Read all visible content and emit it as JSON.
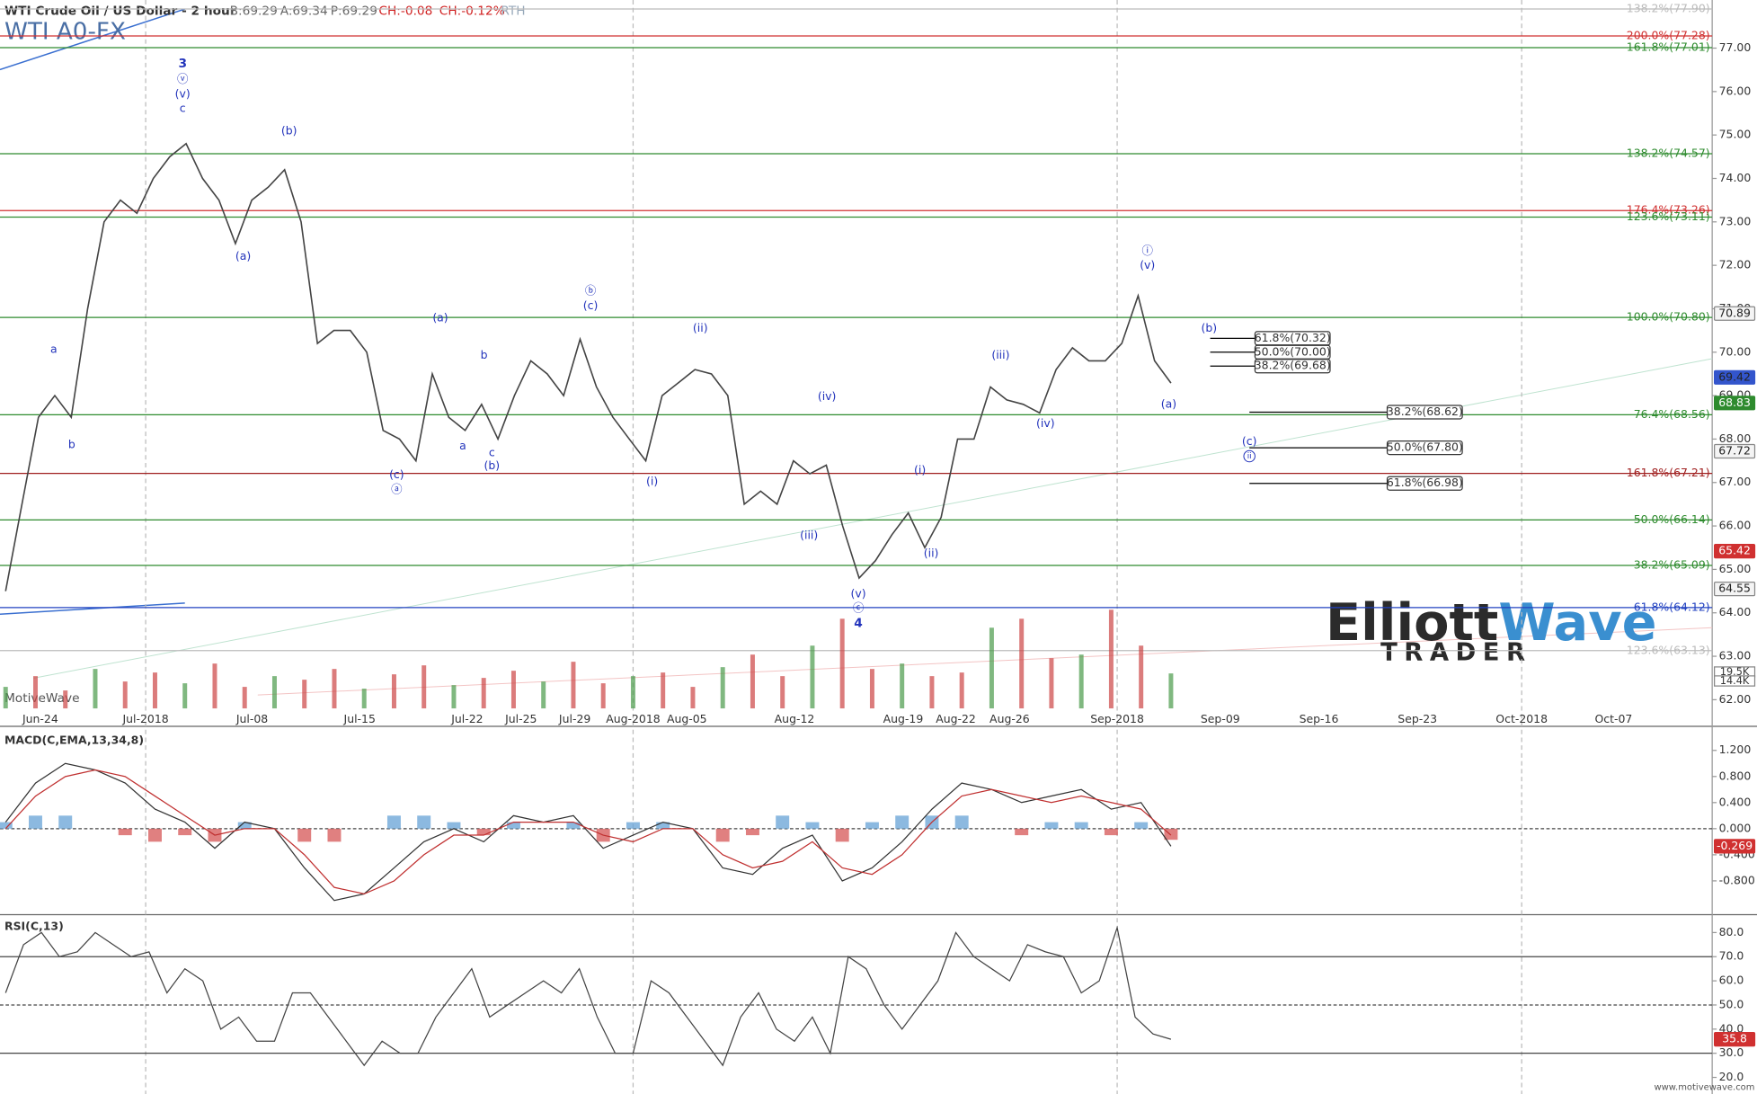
{
  "header": {
    "instrument": "WTI Crude Oil / US Dollar - 2 hour",
    "bid": "B:69.29",
    "ask": "A:69.34",
    "price": "P:69.29",
    "change": "CH:-0.08",
    "change_pct": "CH:-0.12%",
    "session": "RTH",
    "symbol": "WTI A0-FX"
  },
  "logo": {
    "part1": "Elliott",
    "part2": "Wave",
    "part3": "TRADER"
  },
  "watermark": "MotiveWave",
  "footer": "www.motivewave.com",
  "annotations": [
    "3",
    "ⓥ",
    "(v)",
    "c",
    "(b)",
    "(a)",
    "a",
    "b",
    "(a)",
    "b",
    "a",
    "c",
    "(b)",
    "(c)",
    "ⓐ",
    "ⓑ",
    "(c)",
    "(ii)",
    "(i)",
    "(iv)",
    "(iii)",
    "(v)",
    "ⓒ",
    "4",
    "(i)",
    "(ii)",
    "(iii)",
    "(iv)",
    "ⓘ",
    "(v)",
    "(a)",
    "(b)",
    "(c)",
    "ii"
  ],
  "chart_data": [
    {
      "type": "line",
      "color": "#444444",
      "date_labels": [
        "Jun-24",
        "Jul-2018",
        "Jul-08",
        "Jul-15",
        "Jul-22",
        "Jul-25",
        "Jul-29",
        "Aug-2018",
        "Aug-05",
        "Aug-12",
        "Aug-19",
        "Aug-22",
        "Aug-26",
        "Sep-2018",
        "Sep-09",
        "Sep-16",
        "Sep-23",
        "Oct-2018",
        "Oct-07"
      ],
      "values": [
        64.5,
        66.5,
        68.5,
        69,
        68.5,
        71,
        73,
        73.5,
        73.2,
        74,
        74.5,
        74.8,
        74,
        73.5,
        72.5,
        73.5,
        73.8,
        74.2,
        73,
        70.2,
        70.5,
        70.5,
        70,
        68.2,
        68,
        67.5,
        69.5,
        68.5,
        68.2,
        68.8,
        68,
        69,
        69.8,
        69.5,
        69,
        70.3,
        69.2,
        68.5,
        68,
        67.5,
        69,
        69.3,
        69.6,
        69.5,
        69,
        66.5,
        66.8,
        66.5,
        67.5,
        67.2,
        67.4,
        66,
        64.8,
        65.2,
        65.8,
        66.3,
        65.5,
        66.2,
        68,
        68,
        69.2,
        68.9,
        68.8,
        68.6,
        69.6,
        70.1,
        69.8,
        69.8,
        70.2,
        71.3,
        69.8,
        69.29
      ],
      "ylim": [
        61.8,
        77.9
      ],
      "yticks": [
        {
          "value": 77,
          "label": "77.00"
        },
        {
          "value": 76,
          "label": "76.00"
        },
        {
          "value": 75,
          "label": "75.00"
        },
        {
          "value": 74,
          "label": "74.00"
        },
        {
          "value": 73,
          "label": "73.00"
        },
        {
          "value": 72,
          "label": "72.00"
        },
        {
          "value": 71,
          "label": "71.00"
        },
        {
          "value": 70,
          "label": "70.00"
        },
        {
          "value": 69,
          "label": "69.00"
        },
        {
          "value": 68,
          "label": "68.00"
        },
        {
          "value": 67,
          "label": "67.00"
        },
        {
          "value": 66,
          "label": "66.00"
        },
        {
          "value": 65,
          "label": "65.00"
        },
        {
          "value": 64,
          "label": "64.00"
        },
        {
          "value": 63,
          "label": "63.00"
        },
        {
          "value": 62,
          "label": "62.00"
        }
      ],
      "fib_levels": [
        {
          "label": "138.2%(77.90)",
          "value": 77.9,
          "color": "#bbbbbb"
        },
        {
          "label": "200.0%(77.28)",
          "value": 77.28,
          "color": "#d03030"
        },
        {
          "label": "161.8%(77.01)",
          "value": 77.01,
          "color": "#2e8b2e"
        },
        {
          "label": "138.2%(74.57)",
          "value": 74.57,
          "color": "#2e8b2e"
        },
        {
          "label": "176.4%(73.26)",
          "value": 73.26,
          "color": "#d03030"
        },
        {
          "label": "123.6%(73.11)",
          "value": 73.11,
          "color": "#2e8b2e"
        },
        {
          "label": "100.0%(70.80)",
          "value": 70.8,
          "color": "#2e8b2e"
        },
        {
          "label": "76.4%(68.56)",
          "value": 68.56,
          "color": "#2e8b2e"
        },
        {
          "label": "161.8%(67.21)",
          "value": 67.21,
          "color": "#a02020"
        },
        {
          "label": "50.0%(66.14)",
          "value": 66.14,
          "color": "#2e8b2e"
        },
        {
          "label": "38.2%(65.09)",
          "value": 65.09,
          "color": "#2e8b2e"
        },
        {
          "label": "61.8%(64.12)",
          "value": 64.12,
          "color": "#2040c0"
        },
        {
          "label": "123.6%(63.13)",
          "value": 63.13,
          "color": "#bbbbbb"
        }
      ],
      "boxed_levels": [
        {
          "label": "61.8%(70.32)",
          "value": 70.32
        },
        {
          "label": "50.0%(70.00)",
          "value": 70
        },
        {
          "label": "38.2%(69.68)",
          "value": 69.68
        },
        {
          "label": "38.2%(68.62)",
          "value": 68.62
        },
        {
          "label": "50.0%(67.80)",
          "value": 67.8
        },
        {
          "label": "61.8%(66.98)",
          "value": 66.98
        }
      ],
      "price_badges": [
        {
          "label": "70.89",
          "value": 70.89,
          "color": "#888888"
        },
        {
          "label": "69.42",
          "value": 69.42,
          "color": "#3355cc"
        },
        {
          "label": "68.83",
          "value": 68.83,
          "color": "#2e8b2e"
        },
        {
          "label": "67.72",
          "value": 67.72,
          "color": "#888888"
        },
        {
          "label": "65.42",
          "value": 65.42,
          "color": "#d03030"
        },
        {
          "label": "64.55",
          "value": 64.55,
          "color": "#888888"
        }
      ],
      "volume": {
        "values": [
          12,
          18,
          10,
          22,
          15,
          20,
          14,
          25,
          12,
          18,
          16,
          22,
          11,
          19,
          24,
          13,
          17,
          21,
          15,
          26,
          14,
          18,
          20,
          12,
          23,
          30,
          18,
          35,
          50,
          22,
          25,
          18,
          20,
          45,
          50,
          28,
          30,
          55,
          35,
          19.5
        ],
        "ylim": [
          0,
          60
        ],
        "color": "#cc4444",
        "badges": [
          "19.5K",
          "14.4K"
        ]
      }
    },
    {
      "type": "line",
      "title": "MACD(C,EMA,13,34,8)",
      "series": [
        {
          "color": "#333333",
          "values": [
            0.1,
            0.7,
            1.0,
            0.9,
            0.7,
            0.3,
            0.1,
            -0.3,
            0.1,
            0.0,
            -0.6,
            -1.1,
            -1.0,
            -0.6,
            -0.2,
            0.0,
            -0.2,
            0.2,
            0.1,
            0.2,
            -0.3,
            -0.1,
            0.1,
            0.0,
            -0.6,
            -0.7,
            -0.3,
            -0.1,
            -0.8,
            -0.6,
            -0.2,
            0.3,
            0.7,
            0.6,
            0.4,
            0.5,
            0.6,
            0.3,
            0.4,
            -0.269
          ]
        },
        {
          "color": "#c03030",
          "values": [
            0.0,
            0.5,
            0.8,
            0.9,
            0.8,
            0.5,
            0.2,
            -0.1,
            0.0,
            0.0,
            -0.4,
            -0.9,
            -1.0,
            -0.8,
            -0.4,
            -0.1,
            -0.1,
            0.1,
            0.1,
            0.1,
            -0.1,
            -0.2,
            0.0,
            0.0,
            -0.4,
            -0.6,
            -0.5,
            -0.2,
            -0.6,
            -0.7,
            -0.4,
            0.1,
            0.5,
            0.6,
            0.5,
            0.4,
            0.5,
            0.4,
            0.3,
            -0.1
          ]
        }
      ],
      "histogram": {
        "values": [
          0.1,
          0.2,
          0.2,
          0.0,
          -0.1,
          -0.2,
          -0.1,
          -0.2,
          0.1,
          0.0,
          -0.2,
          -0.2,
          0.0,
          0.2,
          0.2,
          0.1,
          -0.1,
          0.1,
          0.0,
          0.1,
          -0.2,
          0.1,
          0.1,
          0.0,
          -0.2,
          -0.1,
          0.2,
          0.1,
          -0.2,
          0.1,
          0.2,
          0.2,
          0.2,
          0.0,
          -0.1,
          0.1,
          0.1,
          -0.1,
          0.1,
          -0.17
        ],
        "up_color": "#6fa8d8",
        "down_color": "#d86060"
      },
      "ylim": [
        -1.3,
        1.5
      ],
      "yticks": [
        {
          "value": 1.2,
          "label": "1.200"
        },
        {
          "value": 0.8,
          "label": "0.800"
        },
        {
          "value": 0.4,
          "label": "0.400"
        },
        {
          "value": 0,
          "label": "0.000"
        },
        {
          "value": -0.4,
          "label": "-0.400"
        },
        {
          "value": -0.8,
          "label": "-0.800"
        }
      ],
      "badge": {
        "label": "-0.269",
        "value": -0.269,
        "color": "#d03030"
      }
    },
    {
      "type": "line",
      "title": "RSI(C,13)",
      "color": "#444444",
      "values": [
        55,
        75,
        80,
        70,
        72,
        80,
        75,
        70,
        72,
        55,
        65,
        60,
        40,
        45,
        35,
        35,
        55,
        55,
        45,
        35,
        25,
        35,
        30,
        30,
        45,
        55,
        65,
        45,
        50,
        55,
        60,
        55,
        65,
        45,
        30,
        30,
        60,
        55,
        45,
        35,
        25,
        45,
        55,
        40,
        35,
        45,
        30,
        70,
        65,
        50,
        40,
        50,
        60,
        80,
        70,
        65,
        60,
        75,
        72,
        70,
        55,
        60,
        82,
        45,
        38,
        35.8
      ],
      "ylim": [
        15,
        86.5
      ],
      "yticks": [
        {
          "value": 80,
          "label": "80.0"
        },
        {
          "value": 70,
          "label": "70.0"
        },
        {
          "value": 60,
          "label": "60.0"
        },
        {
          "value": 50,
          "label": "50.0"
        },
        {
          "value": 40,
          "label": "40.0"
        },
        {
          "value": 30,
          "label": "30.0"
        },
        {
          "value": 20,
          "label": "20.0"
        }
      ],
      "levels": [
        70,
        50,
        30
      ],
      "badge": {
        "label": "35.8",
        "value": 35.8,
        "color": "#d03030"
      }
    }
  ]
}
